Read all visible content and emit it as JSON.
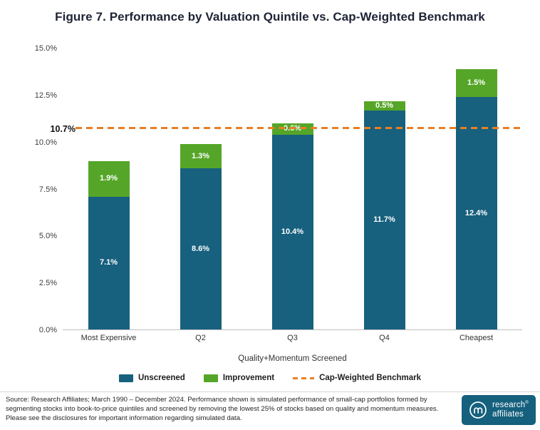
{
  "title": "Figure 7. Performance by Valuation Quintile vs. Cap-Weighted Benchmark",
  "chart_data": {
    "type": "bar",
    "stacked": true,
    "title": "Figure 7. Performance by Valuation Quintile vs. Cap-Weighted Benchmark",
    "categories": [
      "Most Expensive",
      "Q2",
      "Q3",
      "Q4",
      "Cheapest"
    ],
    "series": [
      {
        "name": "Unscreened",
        "color": "#17607E",
        "values": [
          7.1,
          8.6,
          10.4,
          11.7,
          12.4
        ],
        "labels": [
          "7.1%",
          "8.6%",
          "10.4%",
          "11.7%",
          "12.4%"
        ]
      },
      {
        "name": "Improvement",
        "color": "#55A628",
        "values": [
          1.9,
          1.3,
          0.6,
          0.5,
          1.5
        ],
        "labels": [
          "1.9%",
          "1.3%",
          "0.6%",
          "0.5%",
          "1.5%"
        ]
      }
    ],
    "benchmark": {
      "name": "Cap-Weighted Benchmark",
      "value": 10.7,
      "label": "10.7%",
      "color": "#E87F25",
      "style": "dashed"
    },
    "xlabel": "Quality+Momentum Screened",
    "ylabel": "",
    "ylim": [
      0,
      15
    ],
    "yticks": [
      {
        "label": "0.0%",
        "value": 0
      },
      {
        "label": "2.5%",
        "value": 2.5
      },
      {
        "label": "5.0%",
        "value": 5
      },
      {
        "label": "7.5%",
        "value": 7.5
      },
      {
        "label": "10.0%",
        "value": 10
      },
      {
        "label": "12.5%",
        "value": 12.5
      },
      {
        "label": "15.0%",
        "value": 15
      }
    ],
    "legend": [
      {
        "label": "Unscreened",
        "color": "#17607E",
        "marker": "swatch"
      },
      {
        "label": "Improvement",
        "color": "#55A628",
        "marker": "swatch"
      },
      {
        "label": "Cap-Weighted Benchmark",
        "color": "#E87F25",
        "marker": "dashed-line"
      }
    ],
    "grid": false,
    "legend_position": "bottom"
  },
  "footer": {
    "source_text": "Source: Research Affiliates; March 1990 – December 2024. Performance shown is simulated performance of small-cap portfolios formed by segmenting stocks into book-to-price quintiles and screened by removing the lowest 25% of stocks based on quality and momentum measures. Please see the disclosures for important information regarding simulated data.",
    "logo": {
      "word1": "research",
      "word2": "affiliates",
      "registered": "®"
    }
  }
}
